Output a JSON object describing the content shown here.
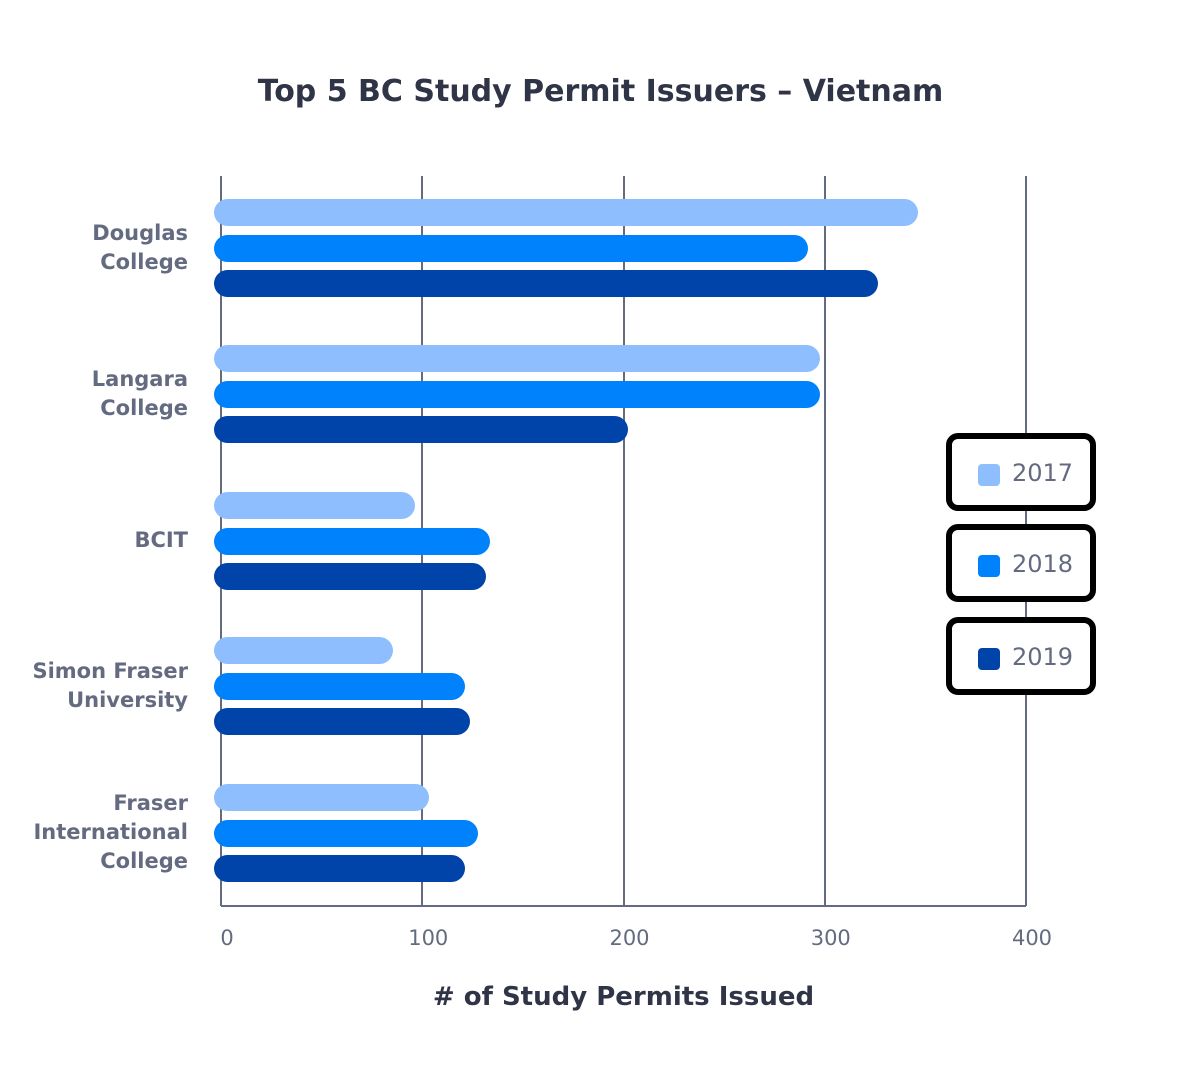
{
  "chart_data": {
    "type": "bar",
    "orientation": "horizontal",
    "title": "Top 5 BC Study Permit Issuers – Vietnam",
    "xlabel": "# of Study Permits Issued",
    "ylabel": "",
    "xlim": [
      0,
      400
    ],
    "xticks": [
      "0",
      "100",
      "200",
      "300",
      "400"
    ],
    "grid": true,
    "legend_position": "right",
    "categories": [
      "Douglas College",
      "Langara College",
      "BCIT",
      "Simon Fraser University",
      "Fraser International College"
    ],
    "category_lines": [
      [
        "Douglas",
        "College"
      ],
      [
        "Langara",
        "College"
      ],
      [
        "BCIT"
      ],
      [
        "Simon Fraser",
        "University"
      ],
      [
        "Fraser",
        "International",
        "College"
      ]
    ],
    "series": [
      {
        "name": "2017",
        "color": "#8fbeff",
        "values": [
          343,
          294,
          93,
          82,
          100
        ]
      },
      {
        "name": "2018",
        "color": "#0082fc",
        "values": [
          288,
          294,
          130,
          118,
          124
        ]
      },
      {
        "name": "2019",
        "color": "#0044aa",
        "values": [
          323,
          199,
          128,
          120,
          118
        ]
      }
    ]
  }
}
